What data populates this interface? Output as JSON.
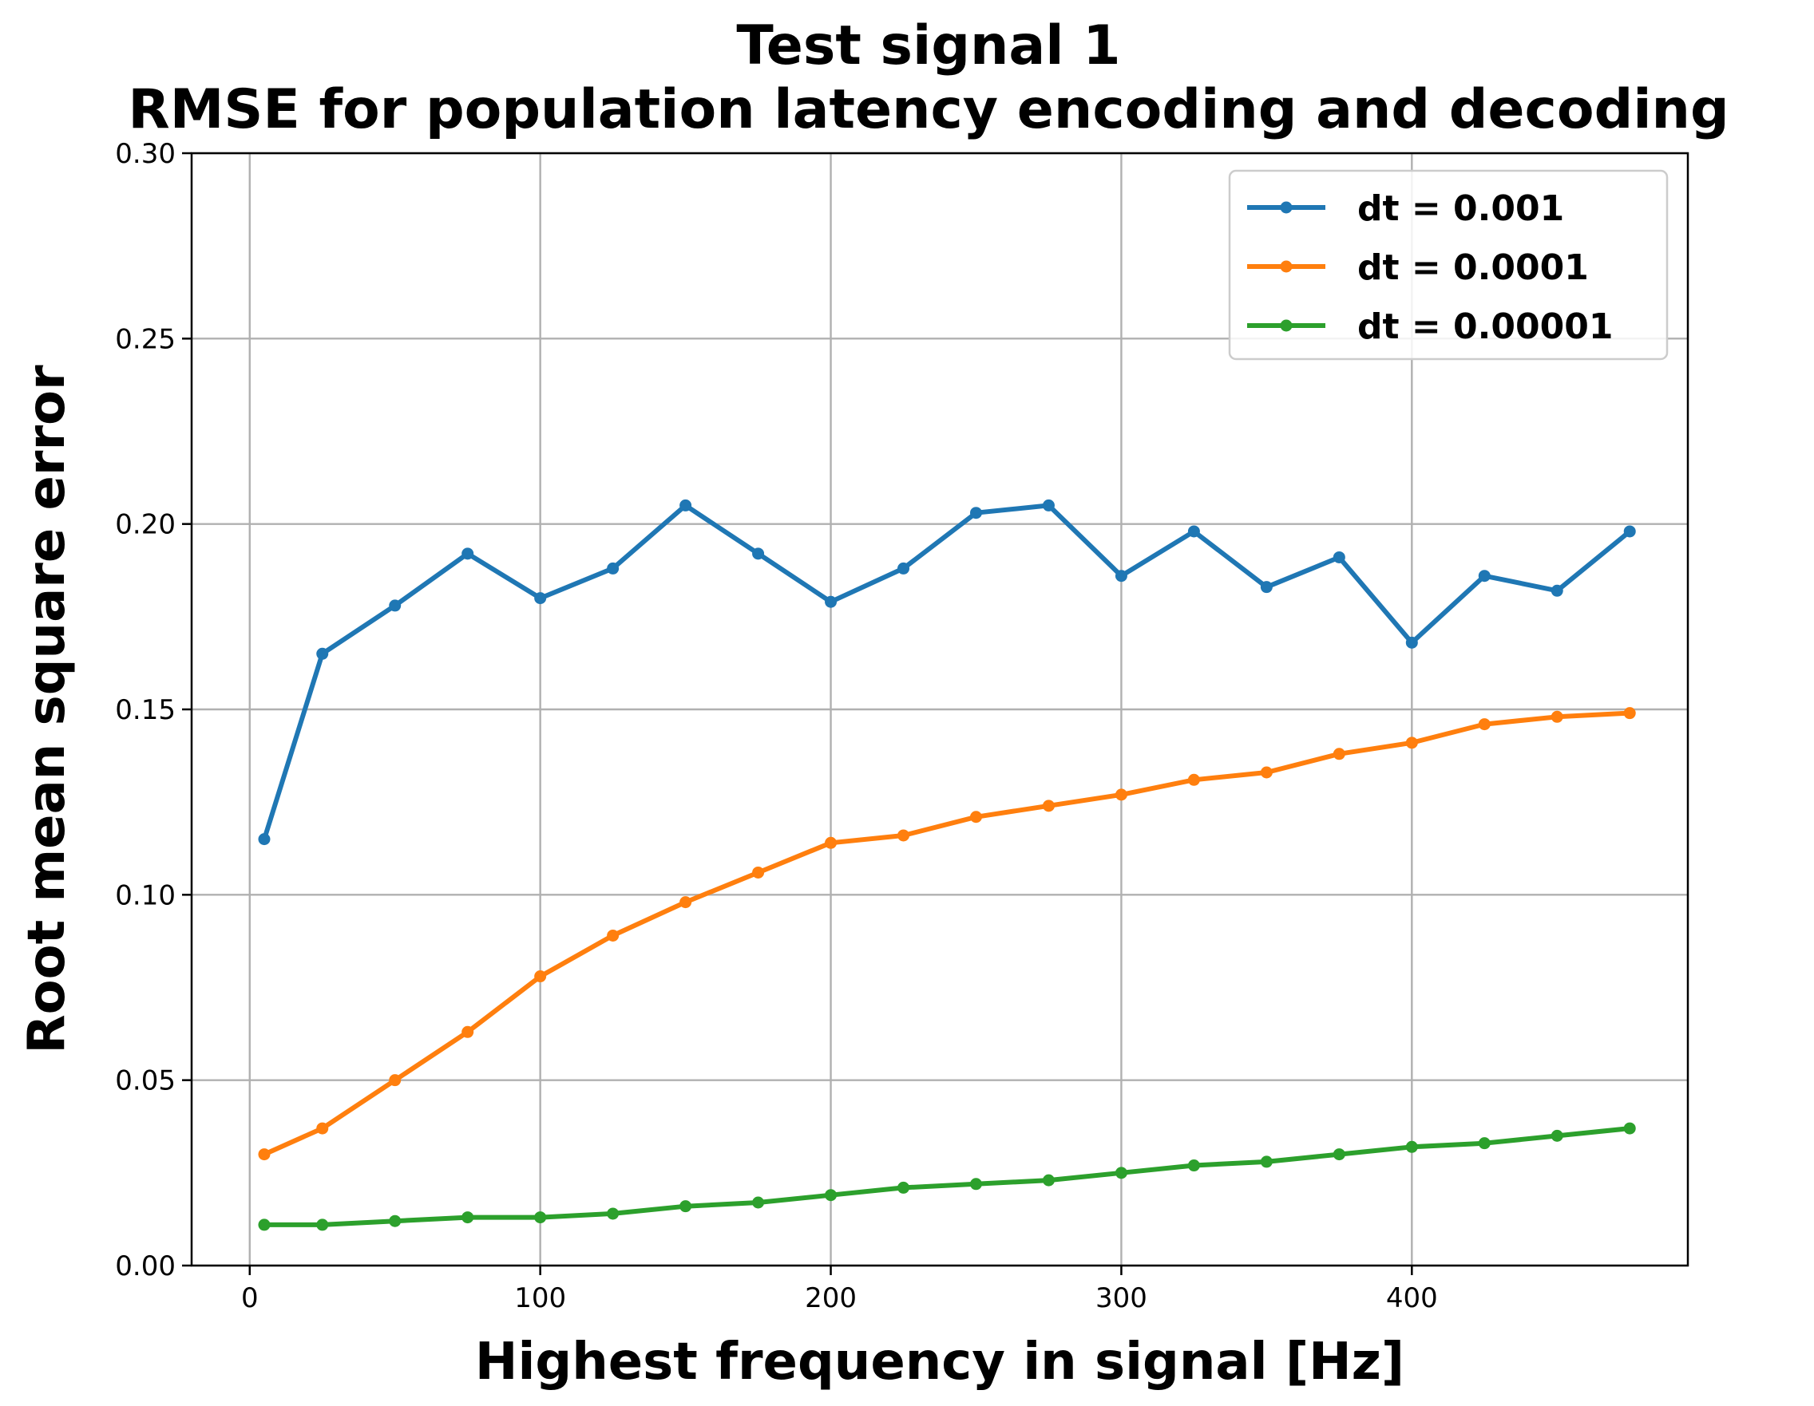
{
  "chart_data": {
    "type": "line",
    "title": "Test signal 1",
    "subtitle": "RMSE for population latency encoding and decoding",
    "xlabel": "Highest frequency in signal [Hz]",
    "ylabel": "Root mean square error",
    "xlim": [
      -20,
      495
    ],
    "ylim": [
      0,
      0.3
    ],
    "xticks": [
      0,
      100,
      200,
      300,
      400
    ],
    "xtick_labels": [
      "0",
      "100",
      "200",
      "300",
      "400"
    ],
    "yticks": [
      0,
      0.05,
      0.1,
      0.15,
      0.2,
      0.25,
      0.3
    ],
    "ytick_labels": [
      "0.00",
      "0.05",
      "0.10",
      "0.15",
      "0.20",
      "0.25",
      "0.30"
    ],
    "grid": true,
    "legend_position": "top-right",
    "x": [
      5,
      25,
      50,
      75,
      100,
      125,
      150,
      175,
      200,
      225,
      250,
      275,
      300,
      325,
      350,
      375,
      400,
      425,
      450,
      475
    ],
    "series": [
      {
        "name": "dt = 0.001",
        "color": "#1f77b4",
        "values": [
          0.115,
          0.165,
          0.178,
          0.192,
          0.18,
          0.188,
          0.205,
          0.192,
          0.179,
          0.188,
          0.203,
          0.205,
          0.186,
          0.198,
          0.183,
          0.191,
          0.168,
          0.186,
          0.182,
          0.198
        ]
      },
      {
        "name": "dt = 0.0001",
        "color": "#ff7f0e",
        "values": [
          0.03,
          0.037,
          0.05,
          0.063,
          0.078,
          0.089,
          0.098,
          0.106,
          0.114,
          0.116,
          0.121,
          0.124,
          0.127,
          0.131,
          0.133,
          0.138,
          0.141,
          0.146,
          0.148,
          0.149
        ]
      },
      {
        "name": "dt = 0.00001",
        "color": "#2ca02c",
        "values": [
          0.011,
          0.011,
          0.012,
          0.013,
          0.013,
          0.014,
          0.016,
          0.017,
          0.019,
          0.021,
          0.022,
          0.023,
          0.025,
          0.027,
          0.028,
          0.03,
          0.032,
          0.033,
          0.035,
          0.037
        ]
      }
    ]
  }
}
